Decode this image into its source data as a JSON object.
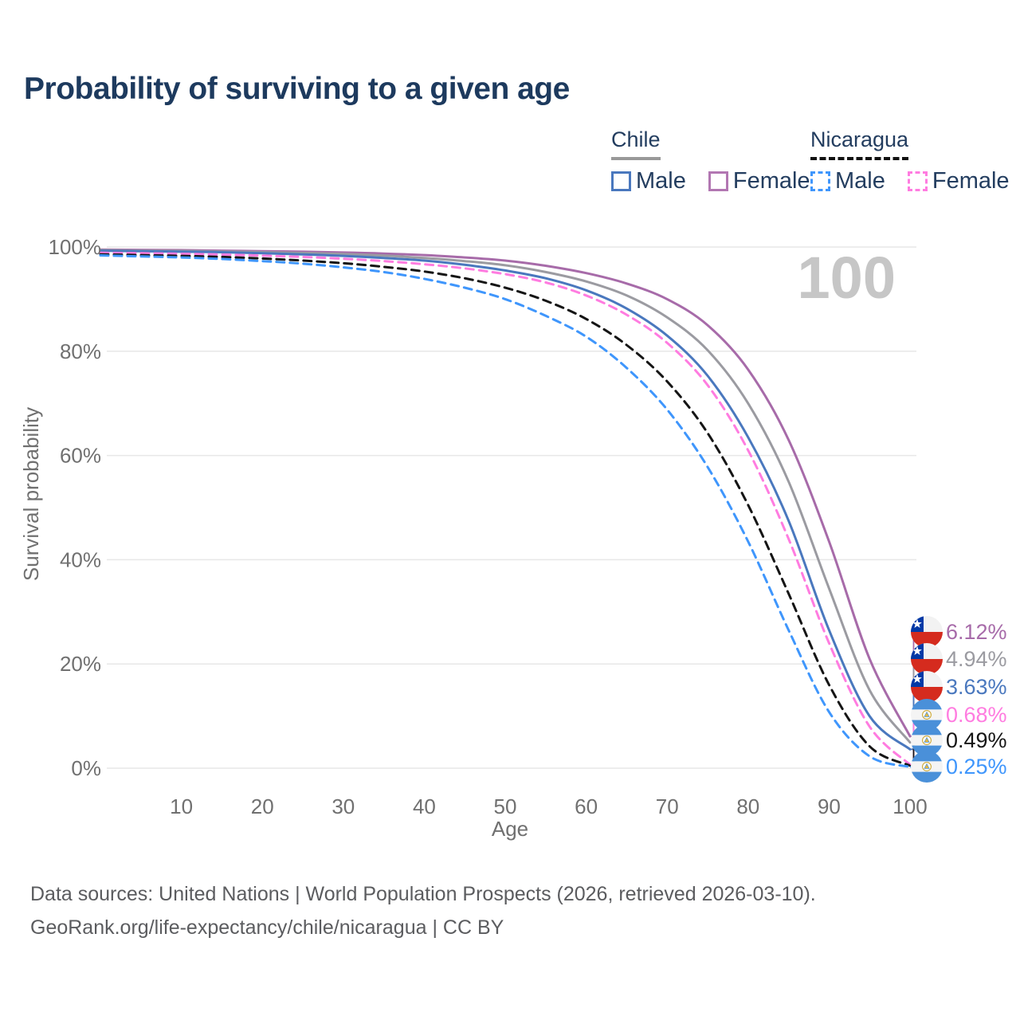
{
  "title": "Probability of surviving to a given age",
  "watermark": "100",
  "legend": {
    "groups": [
      {
        "country": "Chile",
        "line_style": "solid",
        "underline_color": "#999999",
        "items": [
          {
            "label": "Male",
            "color": "#4a78be"
          },
          {
            "label": "Female",
            "color": "#b277b2"
          }
        ]
      },
      {
        "country": "Nicaragua",
        "line_style": "dashed",
        "underline_color": "#111111",
        "items": [
          {
            "label": "Male",
            "color": "#3f96fc"
          },
          {
            "label": "Female",
            "color": "#ff7ce0"
          }
        ]
      }
    ]
  },
  "chart_data": {
    "type": "line",
    "title": "Probability of surviving to a given age",
    "xlabel": "Age",
    "ylabel": "Survival probability",
    "xlim": [
      0,
      100
    ],
    "ylim": [
      0,
      100
    ],
    "grid": "horizontal-only",
    "legend_position": "top-right",
    "xticks": [
      "10",
      "20",
      "30",
      "40",
      "50",
      "60",
      "70",
      "80",
      "90",
      "100"
    ],
    "xtick_values": [
      10,
      20,
      30,
      40,
      50,
      60,
      70,
      80,
      90,
      100
    ],
    "yticks": [
      "0%",
      "20%",
      "40%",
      "60%",
      "80%",
      "100%"
    ],
    "ytick_values": [
      0,
      20,
      40,
      60,
      80,
      100
    ],
    "hover_age_indicator": "100",
    "ages": [
      0,
      5,
      10,
      15,
      20,
      25,
      30,
      35,
      40,
      45,
      50,
      55,
      60,
      65,
      70,
      75,
      80,
      85,
      90,
      95,
      100
    ],
    "series": [
      {
        "name": "Chile Female",
        "country": "Chile",
        "sex": "Female",
        "flag": "chile",
        "color": "#a76ba9",
        "line_style": "solid",
        "end_label": "6.12%",
        "values": [
          99.5,
          99.45,
          99.4,
          99.3,
          99.2,
          99.1,
          98.95,
          98.75,
          98.45,
          98.0,
          97.4,
          96.4,
          95.0,
          93.0,
          90.0,
          85.0,
          76.5,
          63.0,
          43.5,
          21.0,
          6.12
        ]
      },
      {
        "name": "Chile Both sexes",
        "country": "Chile",
        "sex": "Both",
        "flag": "chile",
        "color": "#9b9ba1",
        "line_style": "solid",
        "end_label": "4.94%",
        "values": [
          99.4,
          99.3,
          99.25,
          99.15,
          99.0,
          98.85,
          98.65,
          98.35,
          97.9,
          97.3,
          96.5,
          95.2,
          93.4,
          90.7,
          86.5,
          80.2,
          70.0,
          55.0,
          34.5,
          15.0,
          4.94
        ]
      },
      {
        "name": "Chile Male",
        "country": "Chile",
        "sex": "Male",
        "flag": "chile",
        "color": "#4a78be",
        "line_style": "solid",
        "end_label": "3.63%",
        "values": [
          99.3,
          99.2,
          99.1,
          99.0,
          98.8,
          98.6,
          98.3,
          97.9,
          97.4,
          96.6,
          95.5,
          94.0,
          91.7,
          88.2,
          83.0,
          75.3,
          63.5,
          47.5,
          26.5,
          10.0,
          3.63
        ]
      },
      {
        "name": "Nicaragua Female",
        "country": "Nicaragua",
        "sex": "Female",
        "flag": "nicaragua",
        "color": "#ff7ce0",
        "line_style": "dashed",
        "end_label": "0.68%",
        "values": [
          98.9,
          98.8,
          98.7,
          98.55,
          98.35,
          98.1,
          97.75,
          97.3,
          96.7,
          95.9,
          94.8,
          93.2,
          90.7,
          87.0,
          81.6,
          73.5,
          61.0,
          44.0,
          24.0,
          8.0,
          0.68
        ]
      },
      {
        "name": "Nicaragua Both sexes",
        "country": "Nicaragua",
        "sex": "Both",
        "flag": "nicaragua",
        "color": "#151515",
        "line_style": "dashed",
        "end_label": "0.49%",
        "values": [
          98.6,
          98.45,
          98.3,
          98.1,
          97.8,
          97.4,
          96.9,
          96.2,
          95.3,
          94.0,
          92.2,
          89.7,
          86.2,
          81.2,
          74.2,
          64.3,
          50.5,
          33.5,
          16.0,
          4.2,
          0.49
        ]
      },
      {
        "name": "Nicaragua Male",
        "country": "Nicaragua",
        "sex": "Male",
        "flag": "nicaragua",
        "color": "#3f96fc",
        "line_style": "dashed",
        "end_label": "0.25%",
        "values": [
          98.4,
          98.2,
          98.0,
          97.7,
          97.3,
          96.8,
          96.1,
          95.2,
          93.9,
          92.2,
          90.0,
          86.8,
          82.8,
          76.8,
          68.8,
          57.8,
          43.5,
          26.5,
          10.8,
          2.3,
          0.25
        ]
      }
    ]
  },
  "footer": {
    "line1": "Data sources: United Nations | World Population Prospects (2026, retrieved 2026-03-10).",
    "line2": "GeoRank.org/life-expectancy/chile/nicaragua | CC BY"
  }
}
